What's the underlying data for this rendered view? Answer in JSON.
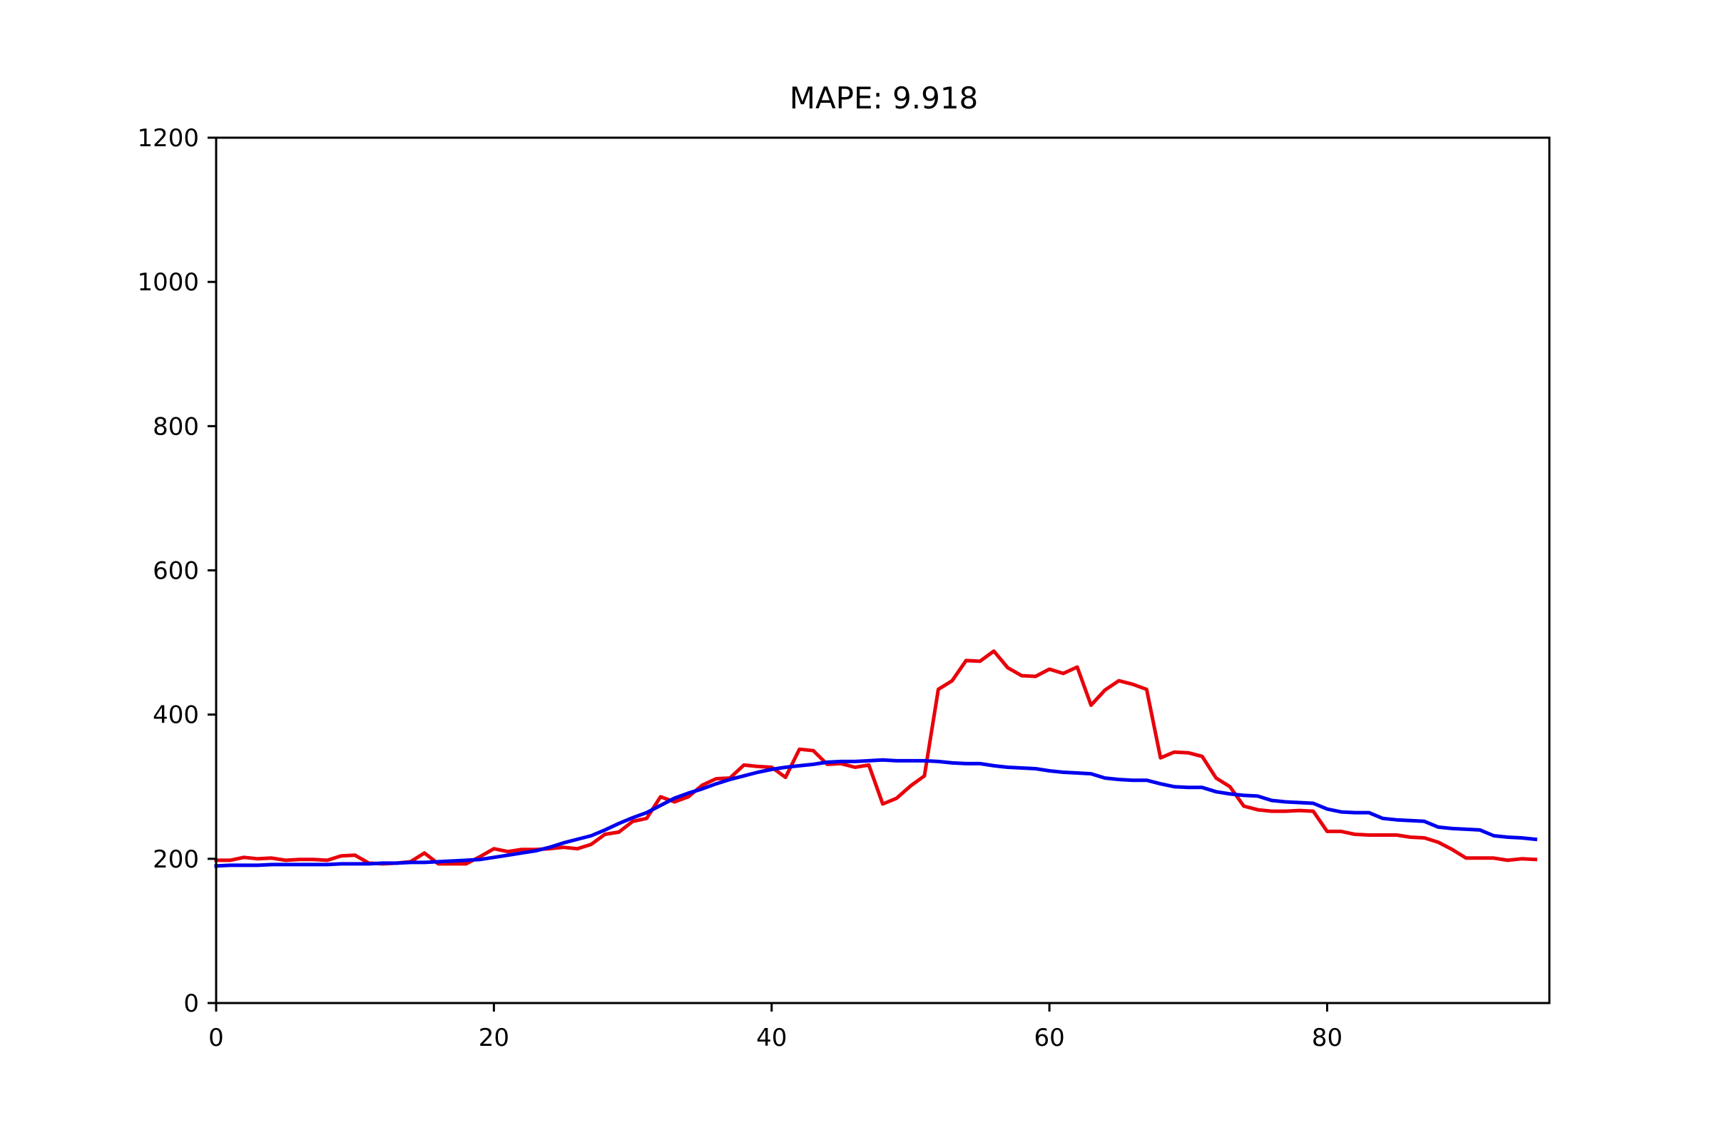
{
  "chart_data": {
    "type": "line",
    "title": "MAPE: 9.918",
    "xlabel": "",
    "ylabel": "",
    "xlim": [
      0,
      96
    ],
    "ylim": [
      0,
      1200
    ],
    "x_ticks": [
      0,
      20,
      40,
      60,
      80
    ],
    "y_ticks": [
      0,
      200,
      400,
      600,
      800,
      1000,
      1200
    ],
    "grid": false,
    "legend": "none",
    "series": [
      {
        "color": "#e8000b",
        "x": [
          0,
          1,
          2,
          3,
          4,
          5,
          6,
          7,
          8,
          9,
          10,
          11,
          12,
          13,
          14,
          15,
          16,
          17,
          18,
          19,
          20,
          21,
          22,
          23,
          24,
          25,
          26,
          27,
          28,
          29,
          30,
          31,
          32,
          33,
          34,
          35,
          36,
          37,
          38,
          39,
          40,
          41,
          42,
          43,
          44,
          45,
          46,
          47,
          48,
          49,
          50,
          51,
          52,
          53,
          54,
          55,
          56,
          57,
          58,
          59,
          60,
          61,
          62,
          63,
          64,
          65,
          66,
          67,
          68,
          69,
          70,
          71,
          72,
          73,
          74,
          75,
          76,
          77,
          78,
          79,
          80,
          81,
          82,
          83,
          84,
          85,
          86,
          87,
          88,
          89,
          90,
          91,
          92,
          93,
          94,
          95
        ],
        "values": [
          198,
          198,
          202,
          200,
          201,
          198,
          199,
          199,
          198,
          204,
          205,
          194,
          193,
          194,
          196,
          208,
          193,
          193,
          193,
          203,
          214,
          210,
          213,
          213,
          214,
          216,
          214,
          220,
          234,
          237,
          252,
          256,
          286,
          279,
          286,
          302,
          311,
          312,
          330,
          328,
          327,
          313,
          352,
          350,
          331,
          332,
          327,
          330,
          276,
          284,
          301,
          315,
          435,
          447,
          475,
          474,
          488,
          465,
          454,
          453,
          463,
          457,
          466,
          413,
          434,
          447,
          442,
          435,
          340,
          348,
          347,
          342,
          312,
          300,
          273,
          268,
          266,
          266,
          267,
          266,
          238,
          238,
          234,
          233,
          233,
          233,
          230,
          229,
          223,
          213,
          201,
          201,
          201,
          198,
          200,
          199
        ]
      },
      {
        "color": "#0000ee",
        "x": [
          0,
          1,
          2,
          3,
          4,
          5,
          6,
          7,
          8,
          9,
          10,
          11,
          12,
          13,
          14,
          15,
          16,
          17,
          18,
          19,
          20,
          21,
          22,
          23,
          24,
          25,
          26,
          27,
          28,
          29,
          30,
          31,
          32,
          33,
          34,
          35,
          36,
          37,
          38,
          39,
          40,
          41,
          42,
          43,
          44,
          45,
          46,
          47,
          48,
          49,
          50,
          51,
          52,
          53,
          54,
          55,
          56,
          57,
          58,
          59,
          60,
          61,
          62,
          63,
          64,
          65,
          66,
          67,
          68,
          69,
          70,
          71,
          72,
          73,
          74,
          75,
          76,
          77,
          78,
          79,
          80,
          81,
          82,
          83,
          84,
          85,
          86,
          87,
          88,
          89,
          90,
          91,
          92,
          93,
          94,
          95
        ],
        "values": [
          190,
          191,
          191,
          191,
          192,
          192,
          192,
          192,
          192,
          193,
          193,
          193,
          194,
          194,
          195,
          195,
          196,
          197,
          198,
          199,
          202,
          205,
          208,
          211,
          216,
          222,
          227,
          232,
          240,
          249,
          257,
          264,
          274,
          284,
          291,
          297,
          304,
          310,
          315,
          320,
          324,
          327,
          329,
          331,
          334,
          335,
          335,
          336,
          337,
          336,
          336,
          336,
          335,
          333,
          332,
          332,
          329,
          327,
          326,
          325,
          322,
          320,
          319,
          318,
          312,
          310,
          309,
          309,
          304,
          300,
          299,
          299,
          293,
          290,
          288,
          287,
          281,
          279,
          278,
          277,
          269,
          265,
          264,
          264,
          256,
          254,
          253,
          252,
          244,
          242,
          241,
          240,
          232,
          230,
          229,
          227
        ]
      }
    ]
  }
}
